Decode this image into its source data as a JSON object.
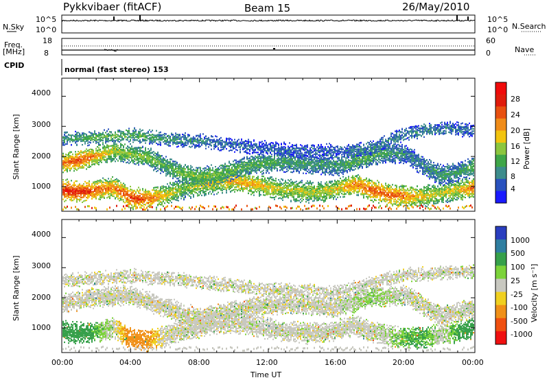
{
  "header": {
    "title": "Pykkvibaer (fitACF)",
    "beam": "Beam 15",
    "date": "26/May/2010"
  },
  "strips": {
    "nsky_label": "N.Sky",
    "nsky_ticks": [
      "10^5",
      "10^0"
    ],
    "nsearch_label": "N.Search",
    "nsearch_ticks": [
      "10^5",
      "10^0"
    ],
    "freq_label": "Freq.",
    "freq_unit": "[MHz]",
    "freq_ticks": [
      "18",
      "8"
    ],
    "nave_label": "Nave",
    "nave_ticks": [
      "60",
      "0"
    ],
    "cpid_label": "CPID",
    "cpid_value": "normal (fast stereo) 153"
  },
  "power_panel": {
    "ylabel": "Slant Range [km]",
    "colorbar_label": "Power [dB]",
    "colorbar_ticks": [
      "28",
      "24",
      "20",
      "16",
      "12",
      "8",
      "4"
    ]
  },
  "velocity_panel": {
    "ylabel": "Slant Range [km]",
    "colorbar_label": "Velocity [m s⁻¹]",
    "colorbar_ticks": [
      "1000",
      "500",
      "100",
      "25",
      "-25",
      "-100",
      "-500",
      "-1000"
    ]
  },
  "x_axis": {
    "label": "Time UT",
    "ticks": [
      "00:00",
      "04:00",
      "08:00",
      "12:00",
      "16:00",
      "20:00",
      "00:00"
    ]
  },
  "colors": {
    "power_scale": [
      "#1a1aff",
      "#2a52be",
      "#3d8c8c",
      "#3fa648",
      "#8cc63e",
      "#f2c40f",
      "#f08c19",
      "#e85010",
      "#e01b0b",
      "#f00a0a"
    ],
    "velocity_scale": [
      "#2a3ebf",
      "#2f7ea0",
      "#36a04a",
      "#7cd33a",
      "#c8c8c0",
      "#f0d020",
      "#f09018",
      "#f05010",
      "#f01010"
    ]
  },
  "chart_data": [
    {
      "type": "heatmap",
      "title": "Pykkvibaer (fitACF)",
      "xlabel": "Time UT",
      "ylabel": "Slant Range [km]",
      "x_ticks": [
        "00:00",
        "04:00",
        "08:00",
        "12:00",
        "16:00",
        "20:00",
        "00:00"
      ],
      "xlim": [
        0,
        24
      ],
      "ylim": [
        180,
        4600
      ],
      "y_ticks": [
        1000,
        2000,
        3000,
        4000
      ],
      "colorbar": {
        "label": "Power [dB]",
        "ticks": [
          4,
          8,
          12,
          16,
          20,
          24,
          28
        ],
        "range": [
          0,
          32
        ]
      },
      "echo_bands": [
        {
          "name": "near",
          "x": [
            0,
            1,
            2,
            3,
            4,
            5,
            6,
            7,
            8,
            9,
            10,
            11,
            12,
            13,
            14,
            15,
            16,
            17,
            18,
            19,
            20,
            21,
            22,
            23,
            24
          ],
          "range_km": [
            900,
            850,
            900,
            1000,
            650,
            600,
            750,
            950,
            1050,
            1150,
            1200,
            1100,
            1000,
            900,
            850,
            850,
            950,
            1100,
            900,
            750,
            700,
            700,
            800,
            900,
            1000
          ],
          "power_db": [
            28,
            28,
            24,
            22,
            26,
            24,
            18,
            14,
            16,
            18,
            20,
            20,
            18,
            16,
            16,
            16,
            18,
            22,
            24,
            24,
            22,
            18,
            16,
            18,
            24
          ]
        },
        {
          "name": "mid",
          "x": [
            0,
            1,
            2,
            3,
            4,
            5,
            6,
            7,
            8,
            9,
            10,
            11,
            12,
            13,
            14,
            15,
            16,
            17,
            18,
            19,
            20,
            21,
            22,
            23,
            24
          ],
          "range_km": [
            1800,
            1900,
            2050,
            2200,
            2100,
            2000,
            1700,
            1450,
            1350,
            1400,
            1600,
            1750,
            1800,
            1850,
            1800,
            1750,
            1700,
            1900,
            2050,
            2150,
            2100,
            1700,
            1400,
            1500,
            1700
          ],
          "power_db": [
            22,
            26,
            20,
            16,
            14,
            14,
            12,
            14,
            14,
            14,
            12,
            12,
            12,
            10,
            10,
            10,
            10,
            12,
            12,
            10,
            8,
            8,
            10,
            10,
            12
          ]
        },
        {
          "name": "far",
          "x": [
            0,
            2,
            4,
            6,
            8,
            10,
            12,
            14,
            16,
            18,
            20,
            22,
            24
          ],
          "range_km": [
            2600,
            2650,
            2750,
            2600,
            2550,
            2400,
            2300,
            2200,
            2200,
            2300,
            2800,
            2950,
            2900
          ],
          "power_db": [
            10,
            12,
            12,
            10,
            8,
            6,
            6,
            6,
            6,
            8,
            8,
            8,
            6
          ]
        }
      ]
    },
    {
      "type": "heatmap",
      "xlabel": "Time UT",
      "ylabel": "Slant Range [km]",
      "x_ticks": [
        "00:00",
        "04:00",
        "08:00",
        "12:00",
        "16:00",
        "20:00",
        "00:00"
      ],
      "xlim": [
        0,
        24
      ],
      "ylim": [
        180,
        4600
      ],
      "y_ticks": [
        1000,
        2000,
        3000,
        4000
      ],
      "colorbar": {
        "label": "Velocity [m s⁻¹]",
        "ticks": [
          1000,
          500,
          100,
          25,
          -25,
          -100,
          -500,
          -1000
        ]
      },
      "echo_bands": [
        {
          "name": "near",
          "x": [
            0,
            1,
            2,
            3,
            4,
            5,
            6,
            7,
            8,
            9,
            10,
            11,
            12,
            13,
            14,
            15,
            16,
            17,
            18,
            19,
            20,
            21,
            22,
            23,
            24
          ],
          "range_km": [
            900,
            850,
            900,
            1000,
            650,
            600,
            750,
            950,
            1050,
            1150,
            1200,
            1100,
            1000,
            900,
            850,
            850,
            950,
            1100,
            900,
            750,
            700,
            700,
            800,
            900,
            1000
          ],
          "velocity_ms": [
            120,
            150,
            60,
            0,
            -120,
            -80,
            0,
            0,
            0,
            0,
            0,
            0,
            0,
            0,
            0,
            0,
            0,
            0,
            0,
            20,
            60,
            80,
            0,
            80,
            120
          ]
        },
        {
          "name": "mid",
          "x": [
            0,
            2,
            4,
            6,
            8,
            10,
            12,
            14,
            16,
            18,
            20,
            22,
            24
          ],
          "range_km": [
            1800,
            2050,
            2100,
            1700,
            1350,
            1600,
            1800,
            1800,
            1700,
            2050,
            2100,
            1400,
            1700
          ],
          "velocity_ms": [
            0,
            0,
            0,
            0,
            0,
            0,
            0,
            0,
            0,
            40,
            0,
            0,
            0
          ]
        },
        {
          "name": "far",
          "x": [
            0,
            4,
            8,
            12,
            16,
            20,
            24
          ],
          "range_km": [
            2600,
            2750,
            2550,
            2300,
            2200,
            2800,
            2900
          ],
          "velocity_ms": [
            0,
            0,
            0,
            0,
            0,
            0,
            0
          ]
        }
      ]
    }
  ]
}
